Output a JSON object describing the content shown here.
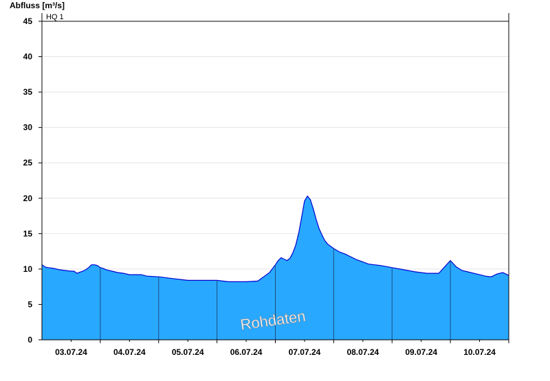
{
  "chart_data": {
    "type": "area",
    "ylabel": "Abfluss [m³/s]",
    "ylim": [
      0,
      45
    ],
    "yticks": [
      0,
      5,
      10,
      15,
      20,
      25,
      30,
      35,
      40,
      45
    ],
    "xlim": [
      2.0,
      10.0
    ],
    "day_starts": [
      3,
      4,
      5,
      6,
      7,
      8,
      9,
      10
    ],
    "xtick_labels": [
      "03.07.24",
      "04.07.24",
      "05.07.24",
      "06.07.24",
      "07.07.24",
      "08.07.24",
      "09.07.24",
      "10.07.24"
    ],
    "grid": true,
    "threshold": {
      "label": "HQ 1",
      "value": 45
    },
    "annotation": "Rohdaten",
    "colors": {
      "fill": "#29a8ff",
      "line": "#0000d0",
      "grid": "#e4e4e4"
    },
    "series": [
      {
        "x": [
          2.0,
          2.02,
          2.05,
          2.1,
          2.2,
          2.3,
          2.4,
          2.5,
          2.55,
          2.6,
          2.7,
          2.75,
          2.8,
          2.85,
          2.9,
          2.95,
          3.0,
          3.05,
          3.1,
          3.2,
          3.3,
          3.4,
          3.5,
          3.7,
          3.8,
          4.0,
          4.2,
          4.4,
          4.5,
          4.6,
          4.8,
          5.0,
          5.2,
          5.5,
          5.7,
          5.8,
          5.9,
          6.0,
          6.05,
          6.1,
          6.15,
          6.2,
          6.25,
          6.3,
          6.35,
          6.4,
          6.45,
          6.5,
          6.55,
          6.6,
          6.65,
          6.7,
          6.75,
          6.8,
          6.85,
          6.9,
          7.0,
          7.1,
          7.2,
          7.3,
          7.4,
          7.5,
          7.6,
          7.8,
          8.0,
          8.2,
          8.4,
          8.6,
          8.8,
          9.0,
          9.1,
          9.2,
          9.3,
          9.4,
          9.5,
          9.6,
          9.7,
          9.8,
          9.9,
          10.0
        ],
        "y": [
          10.6,
          10.5,
          10.3,
          10.2,
          10.1,
          9.9,
          9.8,
          9.7,
          9.7,
          9.4,
          9.7,
          9.9,
          10.2,
          10.6,
          10.6,
          10.5,
          10.2,
          10.1,
          9.9,
          9.7,
          9.5,
          9.4,
          9.2,
          9.2,
          9.0,
          8.9,
          8.7,
          8.5,
          8.4,
          8.4,
          8.4,
          8.4,
          8.2,
          8.2,
          8.3,
          8.9,
          9.5,
          10.6,
          11.2,
          11.6,
          11.4,
          11.2,
          11.5,
          12.3,
          13.4,
          15.1,
          17.3,
          19.6,
          20.3,
          19.8,
          18.5,
          17.0,
          15.7,
          14.8,
          14.0,
          13.5,
          12.9,
          12.4,
          12.1,
          11.7,
          11.3,
          11.0,
          10.7,
          10.5,
          10.2,
          9.9,
          9.6,
          9.4,
          9.4,
          11.2,
          10.3,
          9.8,
          9.6,
          9.4,
          9.2,
          9.0,
          8.9,
          9.3,
          9.5,
          9.1
        ]
      }
    ]
  }
}
